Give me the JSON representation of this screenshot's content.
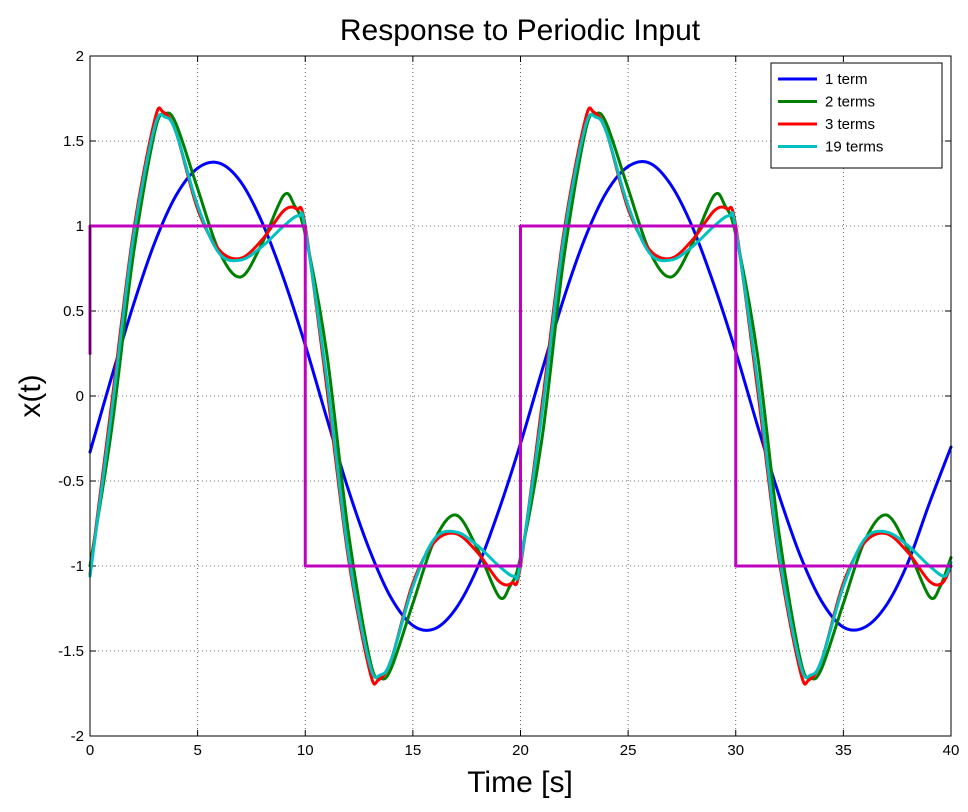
{
  "chart_data": {
    "type": "line",
    "title": "Response to Periodic Input",
    "xlabel": "Time [s]",
    "ylabel": "x(t)",
    "xlim": [
      0,
      40
    ],
    "ylim": [
      -2,
      2
    ],
    "x_ticks": [
      0,
      5,
      10,
      15,
      20,
      25,
      30,
      35,
      40
    ],
    "x_tick_labels": [
      "0",
      "5",
      "10",
      "15",
      "20",
      "25",
      "30",
      "35",
      "40"
    ],
    "y_ticks": [
      -2,
      -1.5,
      -1,
      -0.5,
      0,
      0.5,
      1,
      1.5,
      2
    ],
    "y_tick_labels": [
      "-2",
      "-1.5",
      "-1",
      "-0.5",
      "0",
      "0.5",
      "1",
      "1.5",
      "2"
    ],
    "grid": true,
    "legend_position": "top-right",
    "series": [
      {
        "name": "1 term",
        "color": "#0000ff",
        "x": [
          0,
          1,
          2,
          3,
          4,
          5,
          6,
          7,
          8,
          9,
          10,
          11,
          12,
          13,
          14,
          15,
          16,
          17,
          18,
          19,
          20,
          21,
          22,
          23,
          24,
          25,
          26,
          27,
          28,
          29,
          30,
          31,
          32,
          33,
          34,
          35,
          36,
          37,
          38,
          39,
          40
        ],
        "y": [
          -0.33,
          0.11,
          0.53,
          0.9,
          1.18,
          1.34,
          1.37,
          1.26,
          1.02,
          0.69,
          0.3,
          -0.13,
          -0.55,
          -0.91,
          -1.19,
          -1.35,
          -1.37,
          -1.25,
          -1.01,
          -0.67,
          -0.28,
          0.15,
          0.57,
          0.93,
          1.2,
          1.35,
          1.37,
          1.24,
          0.99,
          0.65,
          0.26,
          -0.17,
          -0.58,
          -0.94,
          -1.21,
          -1.36,
          -1.36,
          -1.23,
          -0.98,
          -0.63,
          -0.3
        ]
      },
      {
        "name": "2 terms",
        "color": "#008000",
        "x": [
          0,
          1,
          2,
          3,
          3.5,
          4,
          5,
          6,
          7,
          8,
          9,
          9.5,
          10,
          11,
          12,
          13,
          13.5,
          14,
          15,
          16,
          17,
          18,
          19,
          19.5,
          20,
          21,
          22,
          23,
          23.5,
          24,
          25,
          26,
          27,
          28,
          29,
          29.5,
          30,
          31,
          32,
          33,
          33.5,
          34,
          35,
          36,
          37,
          38,
          39,
          39.5,
          40
        ],
        "y": [
          -1.0,
          -0.2,
          0.82,
          1.55,
          1.66,
          1.6,
          1.22,
          0.85,
          0.7,
          0.9,
          1.18,
          1.12,
          0.95,
          0.25,
          -0.8,
          -1.55,
          -1.66,
          -1.6,
          -1.22,
          -0.85,
          -0.7,
          -0.9,
          -1.18,
          -1.12,
          -0.95,
          -0.25,
          0.8,
          1.55,
          1.66,
          1.6,
          1.22,
          0.85,
          0.7,
          0.9,
          1.18,
          1.12,
          0.95,
          0.25,
          -0.8,
          -1.55,
          -1.66,
          -1.6,
          -1.22,
          -0.85,
          -0.7,
          -0.9,
          -1.18,
          -1.12,
          -0.95
        ]
      },
      {
        "name": "3 terms",
        "color": "#ff0000",
        "x": [
          0,
          1,
          2,
          3,
          3.4,
          4,
          5,
          6,
          7,
          8,
          9,
          9.6,
          10,
          11,
          12,
          13,
          13.4,
          14,
          15,
          16,
          17,
          18,
          19,
          19.6,
          20,
          21,
          22,
          23,
          23.4,
          24,
          25,
          26,
          27,
          28,
          29,
          29.6,
          30,
          31,
          32,
          33,
          33.4,
          34,
          35,
          36,
          37,
          38,
          39,
          39.6,
          40
        ],
        "y": [
          -1.05,
          -0.05,
          0.95,
          1.62,
          1.67,
          1.55,
          1.1,
          0.86,
          0.81,
          0.92,
          1.09,
          1.1,
          1.0,
          0.05,
          -0.95,
          -1.62,
          -1.67,
          -1.55,
          -1.1,
          -0.86,
          -0.81,
          -0.92,
          -1.09,
          -1.1,
          -1.0,
          -0.05,
          0.95,
          1.62,
          1.67,
          1.55,
          1.1,
          0.86,
          0.81,
          0.92,
          1.09,
          1.1,
          1.0,
          0.05,
          -0.95,
          -1.62,
          -1.67,
          -1.55,
          -1.1,
          -0.86,
          -0.81,
          -0.92,
          -1.09,
          -1.1,
          -1.0
        ]
      },
      {
        "name": "19 terms",
        "color": "#00c0c0",
        "x": [
          0,
          1,
          2,
          3,
          3.5,
          4,
          5,
          6,
          7,
          8,
          9,
          9.7,
          10,
          11,
          12,
          13,
          13.5,
          14,
          15,
          16,
          17,
          18,
          19,
          19.7,
          20,
          21,
          22,
          23,
          23.5,
          24,
          25,
          26,
          27,
          28,
          29,
          29.7,
          30,
          31,
          32,
          33,
          33.5,
          34,
          35,
          36,
          37,
          38,
          39,
          39.7,
          40
        ],
        "y": [
          -1.06,
          -0.1,
          0.92,
          1.58,
          1.64,
          1.55,
          1.12,
          0.84,
          0.8,
          0.88,
          1.0,
          1.06,
          0.98,
          0.1,
          -0.92,
          -1.58,
          -1.64,
          -1.55,
          -1.12,
          -0.84,
          -0.8,
          -0.88,
          -1.0,
          -1.06,
          -0.98,
          -0.1,
          0.92,
          1.58,
          1.64,
          1.55,
          1.12,
          0.84,
          0.8,
          0.88,
          1.0,
          1.06,
          0.98,
          0.1,
          -0.92,
          -1.58,
          -1.64,
          -1.55,
          -1.12,
          -0.84,
          -0.8,
          -0.88,
          -1.0,
          -1.06,
          -0.98
        ]
      },
      {
        "name": "",
        "color": "#c000c0",
        "x": [
          0,
          0,
          10,
          10,
          20,
          20,
          30,
          30,
          40
        ],
        "y": [
          0.25,
          1,
          1,
          -1,
          -1,
          1,
          1,
          -1,
          -1
        ]
      }
    ],
    "legend_entries": [
      "1 term",
      "2 terms",
      "3 terms",
      "19 terms"
    ]
  }
}
